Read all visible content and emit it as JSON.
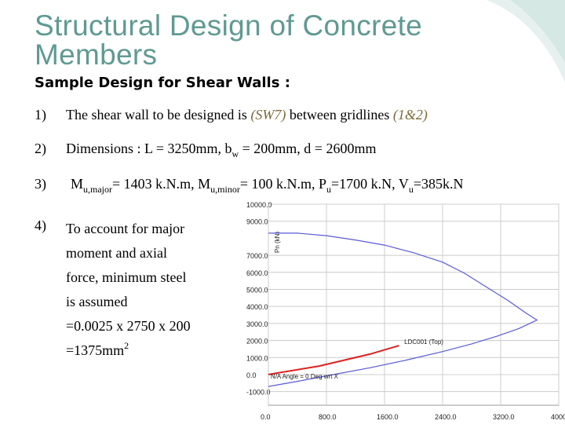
{
  "slide": {
    "title": "Structural Design of Concrete Members",
    "subtitle": "Sample Design for Shear Walls :",
    "items": [
      {
        "num": "1)",
        "text_a": "The shear wall to be designed is ",
        "wall": "(SW7)",
        "text_b": " between gridlines ",
        "gridlines": "(1&2)"
      },
      {
        "num": "2)",
        "text_a": "Dimensions : L = 3250mm, b",
        "sub_w": "w",
        "text_b": " = 200mm, d = 2600mm"
      },
      {
        "num": "3)",
        "m": "M",
        "sub_major": "u,major",
        "eq1": "= 1403 k.N.m, M",
        "sub_minor": "u,minor",
        "eq2": "= 100 k.N.m, P",
        "sub_u1": "u",
        "eq3": "=1700 k.N, V",
        "sub_u2": "u",
        "eq4": "=385k.N"
      },
      {
        "num": "4)",
        "lines": [
          "To account for major",
          " moment and axial",
          "force, minimum steel",
          "is assumed",
          " =0.0025 x 2750 x 200",
          " =1375mm"
        ],
        "sup": "2"
      }
    ]
  },
  "colors": {
    "title": "#5f9a92",
    "curve": "#5a5ad8",
    "load_line": "#e02020",
    "grid": "#cccccc"
  },
  "chart_data": {
    "type": "line",
    "title": "",
    "xlabel": "",
    "ylabel": "Pn (kN)",
    "y_ticks": [
      "10000.0",
      "9000.0",
      "7000.0",
      "6000.0",
      "5000.0",
      "4000.0",
      "3000.0",
      "2000.0",
      "1000.0",
      "0.0",
      "-1000.0"
    ],
    "y_tick_values": [
      10000,
      9000,
      7000,
      6000,
      5000,
      4000,
      3000,
      2000,
      1000,
      0,
      -1000
    ],
    "x_ticks": [
      "0.0",
      "800.0",
      "1600.0",
      "2400.0",
      "3200.0",
      "4000"
    ],
    "x_tick_values": [
      0,
      800,
      1600,
      2400,
      3200,
      4000
    ],
    "xlim": [
      0,
      4000
    ],
    "ylim": [
      -1800,
      10000
    ],
    "grid": true,
    "series": [
      {
        "type": "interaction-curve",
        "x": [
          0,
          400,
          800,
          1200,
          1600,
          2000,
          2400,
          2700,
          3000,
          3300,
          3550,
          3700,
          3450,
          3150,
          2800,
          2400,
          1900,
          1400,
          900,
          400,
          0
        ],
        "y": [
          8300,
          8300,
          8150,
          7900,
          7600,
          7150,
          6600,
          5950,
          5150,
          4350,
          3600,
          3200,
          2700,
          2250,
          1800,
          1350,
          850,
          400,
          0,
          -400,
          -700
        ],
        "color": "#5a5ad8"
      },
      {
        "type": "load-line",
        "x": [
          0,
          700,
          1400,
          1800
        ],
        "y": [
          0,
          500,
          1200,
          1700
        ],
        "color": "#e02020"
      }
    ],
    "annotations": [
      {
        "text": "LDC001 (Top)",
        "x": 1850,
        "y": 1700
      },
      {
        "text": "N/A Angle = 0 Deg wrt X",
        "x": 10,
        "y": -50
      }
    ]
  }
}
